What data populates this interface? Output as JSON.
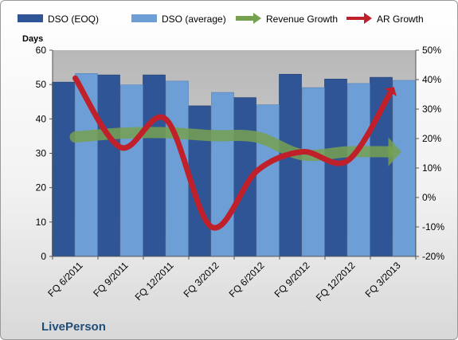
{
  "chart_data": {
    "type": "bar",
    "categories": [
      "FQ 6/2011",
      "FQ 9/2011",
      "FQ 12/2011",
      "FQ 3/2012",
      "FQ 6/2012",
      "FQ 9/2012",
      "FQ 12/2012",
      "FQ 3/2013"
    ],
    "series": [
      {
        "name": "DSO (EOQ)",
        "kind": "bar",
        "axis": "left",
        "color": "#2f5597",
        "values": [
          50.7,
          52.8,
          52.8,
          43.8,
          46.2,
          53.0,
          51.6,
          52.1
        ]
      },
      {
        "name": "DSO (average)",
        "kind": "bar",
        "axis": "left",
        "color": "#6e9ed6",
        "values": [
          53.2,
          49.9,
          51.0,
          47.7,
          44.1,
          49.1,
          50.3,
          51.2
        ]
      },
      {
        "name": "Revenue Growth",
        "kind": "arrow-line",
        "axis": "right",
        "color": "#76a14f",
        "values": [
          20.5,
          21.8,
          22.0,
          21.0,
          20.5,
          14.5,
          15.5,
          15.5
        ]
      },
      {
        "name": "AR Growth",
        "kind": "arrow-line",
        "axis": "right",
        "color": "#c0202a",
        "values": [
          40.5,
          17.0,
          26.5,
          -10.0,
          9.0,
          15.5,
          12.5,
          37.0
        ]
      }
    ],
    "ylabel": "Days",
    "ylim": [
      0,
      60
    ],
    "yticks": [
      "0",
      "10",
      "20",
      "30",
      "40",
      "50",
      "60"
    ],
    "y2lim": [
      -20,
      50
    ],
    "y2ticks": [
      "-20%",
      "-10%",
      "0%",
      "10%",
      "20%",
      "30%",
      "40%",
      "50%"
    ],
    "legend_position": "top",
    "plot_background": "#c8c8c8",
    "grid": false
  },
  "brand_label": "LivePerson"
}
